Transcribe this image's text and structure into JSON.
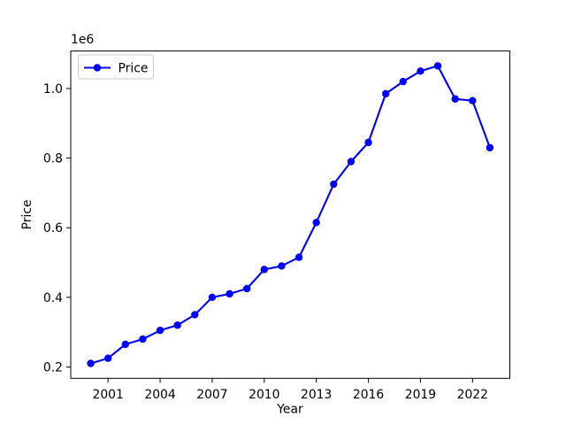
{
  "chart_data": {
    "type": "line",
    "title": "",
    "xlabel": "Year",
    "ylabel": "Price",
    "y_offset_text": "1e6",
    "grid": false,
    "legend": {
      "position": "upper left",
      "entries": [
        "Price"
      ]
    },
    "x": [
      2000,
      2001,
      2002,
      2003,
      2004,
      2005,
      2006,
      2007,
      2008,
      2009,
      2010,
      2011,
      2012,
      2013,
      2014,
      2015,
      2016,
      2017,
      2018,
      2019,
      2020,
      2021,
      2022,
      2023
    ],
    "series": [
      {
        "name": "Price",
        "color": "#0000ff",
        "marker": "circle",
        "values": [
          210000,
          225000,
          265000,
          280000,
          305000,
          320000,
          350000,
          400000,
          410000,
          425000,
          480000,
          490000,
          515000,
          615000,
          725000,
          790000,
          845000,
          985000,
          1020000,
          1050000,
          1065000,
          970000,
          965000,
          830000
        ]
      }
    ],
    "xlim": [
      1998.85,
      2024.15
    ],
    "ylim": [
      167250,
      1107750
    ],
    "xticks": {
      "values": [
        2001,
        2004,
        2007,
        2010,
        2013,
        2016,
        2019,
        2022
      ],
      "labels": [
        "2001",
        "2004",
        "2007",
        "2010",
        "2013",
        "2016",
        "2019",
        "2022"
      ]
    },
    "yticks": {
      "values": [
        200000,
        400000,
        600000,
        800000,
        1000000
      ],
      "labels": [
        "0.2",
        "0.4",
        "0.6",
        "0.8",
        "1.0"
      ]
    },
    "colors": {
      "line": "#0000ff",
      "frame": "#000000",
      "legend_border": "#cccccc",
      "background": "#ffffff"
    }
  }
}
